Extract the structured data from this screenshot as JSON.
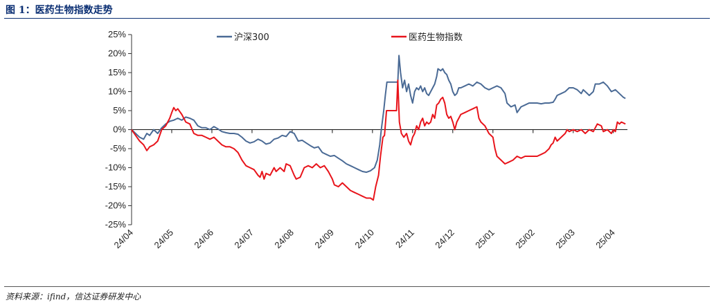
{
  "page": {
    "title": "图 1：医药生物指数走势",
    "source": "资料来源：ifind，信达证券研发中心"
  },
  "chart_data": {
    "type": "line",
    "title": "医药生物指数走势",
    "ylim": [
      -0.25,
      0.25
    ],
    "yticks": [
      0.25,
      0.2,
      0.15,
      0.1,
      0.05,
      0.0,
      -0.05,
      -0.1,
      -0.15,
      -0.2,
      -0.25
    ],
    "ytick_labels": [
      "25%",
      "20%",
      "15%",
      "10%",
      "5%",
      "0%",
      "-5%",
      "-10%",
      "-15%",
      "-20%",
      "-25%"
    ],
    "xlim": [
      0,
      12.35
    ],
    "xticks": [
      0,
      1,
      2,
      3,
      4,
      5,
      6,
      7,
      8,
      9,
      10,
      11,
      12
    ],
    "xtick_labels": [
      "24/04",
      "24/05",
      "24/06",
      "24/07",
      "24/08",
      "24/09",
      "24/10",
      "24/11",
      "24/12",
      "25/01",
      "25/02",
      "25/03",
      "25/04"
    ],
    "legend": [
      "沪深300",
      "医药生物指数"
    ],
    "legend_position": "top",
    "series": [
      {
        "name": "沪深300",
        "color": "#4a6a95",
        "points": [
          [
            0.0,
            0.0
          ],
          [
            0.1,
            -0.01
          ],
          [
            0.2,
            -0.02
          ],
          [
            0.3,
            -0.025
          ],
          [
            0.38,
            -0.01
          ],
          [
            0.45,
            -0.015
          ],
          [
            0.55,
            0.0
          ],
          [
            0.65,
            -0.01
          ],
          [
            0.75,
            0.005
          ],
          [
            0.85,
            0.015
          ],
          [
            0.95,
            0.022
          ],
          [
            1.05,
            0.025
          ],
          [
            1.15,
            0.03
          ],
          [
            1.25,
            0.025
          ],
          [
            1.35,
            0.033
          ],
          [
            1.45,
            0.03
          ],
          [
            1.55,
            0.025
          ],
          [
            1.65,
            0.01
          ],
          [
            1.75,
            0.005
          ],
          [
            1.85,
            0.005
          ],
          [
            1.95,
            0.0
          ],
          [
            2.05,
            0.008
          ],
          [
            2.15,
            0.002
          ],
          [
            2.25,
            -0.005
          ],
          [
            2.35,
            -0.008
          ],
          [
            2.45,
            -0.01
          ],
          [
            2.55,
            -0.01
          ],
          [
            2.65,
            -0.012
          ],
          [
            2.75,
            -0.02
          ],
          [
            2.85,
            -0.03
          ],
          [
            2.95,
            -0.035
          ],
          [
            3.05,
            -0.032
          ],
          [
            3.15,
            -0.025
          ],
          [
            3.25,
            -0.03
          ],
          [
            3.35,
            -0.038
          ],
          [
            3.45,
            -0.035
          ],
          [
            3.55,
            -0.025
          ],
          [
            3.65,
            -0.022
          ],
          [
            3.75,
            -0.015
          ],
          [
            3.85,
            -0.018
          ],
          [
            3.95,
            -0.005
          ],
          [
            4.05,
            -0.01
          ],
          [
            4.15,
            -0.03
          ],
          [
            4.25,
            -0.028
          ],
          [
            4.35,
            -0.035
          ],
          [
            4.45,
            -0.042
          ],
          [
            4.55,
            -0.048
          ],
          [
            4.65,
            -0.045
          ],
          [
            4.75,
            -0.06
          ],
          [
            4.85,
            -0.065
          ],
          [
            4.95,
            -0.07
          ],
          [
            5.05,
            -0.068
          ],
          [
            5.15,
            -0.075
          ],
          [
            5.25,
            -0.082
          ],
          [
            5.35,
            -0.09
          ],
          [
            5.45,
            -0.095
          ],
          [
            5.55,
            -0.1
          ],
          [
            5.65,
            -0.105
          ],
          [
            5.75,
            -0.11
          ],
          [
            5.85,
            -0.112
          ],
          [
            5.95,
            -0.108
          ],
          [
            6.05,
            -0.1
          ],
          [
            6.12,
            -0.08
          ],
          [
            6.18,
            -0.04
          ],
          [
            6.22,
            0.0
          ],
          [
            6.28,
            0.05
          ],
          [
            6.32,
            0.09
          ],
          [
            6.36,
            0.125
          ],
          [
            6.45,
            0.125
          ],
          [
            6.55,
            0.125
          ],
          [
            6.63,
            0.125
          ],
          [
            6.66,
            0.195
          ],
          [
            6.7,
            0.15
          ],
          [
            6.75,
            0.11
          ],
          [
            6.8,
            0.13
          ],
          [
            6.85,
            0.1
          ],
          [
            6.9,
            0.12
          ],
          [
            6.95,
            0.09
          ],
          [
            7.0,
            0.07
          ],
          [
            7.05,
            0.1
          ],
          [
            7.1,
            0.11
          ],
          [
            7.15,
            0.105
          ],
          [
            7.2,
            0.115
          ],
          [
            7.25,
            0.1
          ],
          [
            7.3,
            0.11
          ],
          [
            7.35,
            0.095
          ],
          [
            7.4,
            0.09
          ],
          [
            7.45,
            0.1
          ],
          [
            7.5,
            0.11
          ],
          [
            7.55,
            0.12
          ],
          [
            7.6,
            0.14
          ],
          [
            7.63,
            0.16
          ],
          [
            7.7,
            0.155
          ],
          [
            7.75,
            0.16
          ],
          [
            7.8,
            0.15
          ],
          [
            7.85,
            0.145
          ],
          [
            7.9,
            0.13
          ],
          [
            7.95,
            0.12
          ],
          [
            8.0,
            0.1
          ],
          [
            8.05,
            0.09
          ],
          [
            8.1,
            0.095
          ],
          [
            8.15,
            0.11
          ],
          [
            8.2,
            0.11
          ],
          [
            8.3,
            0.115
          ],
          [
            8.4,
            0.12
          ],
          [
            8.5,
            0.115
          ],
          [
            8.6,
            0.125
          ],
          [
            8.7,
            0.12
          ],
          [
            8.8,
            0.11
          ],
          [
            8.9,
            0.105
          ],
          [
            9.0,
            0.11
          ],
          [
            9.1,
            0.115
          ],
          [
            9.2,
            0.11
          ],
          [
            9.3,
            0.095
          ],
          [
            9.35,
            0.07
          ],
          [
            9.45,
            0.06
          ],
          [
            9.55,
            0.065
          ],
          [
            9.6,
            0.045
          ],
          [
            9.7,
            0.06
          ],
          [
            9.8,
            0.065
          ],
          [
            9.9,
            0.07
          ],
          [
            10.0,
            0.07
          ],
          [
            10.1,
            0.07
          ],
          [
            10.2,
            0.068
          ],
          [
            10.3,
            0.07
          ],
          [
            10.4,
            0.07
          ],
          [
            10.5,
            0.072
          ],
          [
            10.55,
            0.08
          ],
          [
            10.6,
            0.09
          ],
          [
            10.7,
            0.095
          ],
          [
            10.8,
            0.1
          ],
          [
            10.9,
            0.11
          ],
          [
            11.0,
            0.11
          ],
          [
            11.1,
            0.105
          ],
          [
            11.2,
            0.095
          ],
          [
            11.25,
            0.105
          ],
          [
            11.3,
            0.1
          ],
          [
            11.4,
            0.09
          ],
          [
            11.5,
            0.1
          ],
          [
            11.55,
            0.12
          ],
          [
            11.65,
            0.12
          ],
          [
            11.75,
            0.125
          ],
          [
            11.85,
            0.115
          ],
          [
            11.95,
            0.1
          ],
          [
            12.05,
            0.105
          ],
          [
            12.15,
            0.095
          ],
          [
            12.25,
            0.085
          ],
          [
            12.3,
            0.082
          ]
        ]
      },
      {
        "name": "医药生物指数",
        "color": "#e8141b",
        "points": [
          [
            0.0,
            0.0
          ],
          [
            0.1,
            -0.015
          ],
          [
            0.2,
            -0.03
          ],
          [
            0.3,
            -0.04
          ],
          [
            0.38,
            -0.055
          ],
          [
            0.45,
            -0.045
          ],
          [
            0.55,
            -0.04
          ],
          [
            0.65,
            -0.03
          ],
          [
            0.75,
            0.0
          ],
          [
            0.85,
            0.01
          ],
          [
            0.95,
            0.03
          ],
          [
            1.0,
            0.045
          ],
          [
            1.05,
            0.058
          ],
          [
            1.1,
            0.05
          ],
          [
            1.15,
            0.055
          ],
          [
            1.25,
            0.04
          ],
          [
            1.35,
            0.02
          ],
          [
            1.45,
            0.015
          ],
          [
            1.55,
            -0.01
          ],
          [
            1.65,
            -0.015
          ],
          [
            1.75,
            -0.015
          ],
          [
            1.85,
            -0.02
          ],
          [
            1.95,
            -0.025
          ],
          [
            2.05,
            -0.02
          ],
          [
            2.15,
            -0.03
          ],
          [
            2.25,
            -0.04
          ],
          [
            2.35,
            -0.045
          ],
          [
            2.45,
            -0.045
          ],
          [
            2.55,
            -0.05
          ],
          [
            2.65,
            -0.06
          ],
          [
            2.75,
            -0.08
          ],
          [
            2.85,
            -0.095
          ],
          [
            2.95,
            -0.1
          ],
          [
            3.05,
            -0.105
          ],
          [
            3.15,
            -0.12
          ],
          [
            3.2,
            -0.125
          ],
          [
            3.25,
            -0.11
          ],
          [
            3.3,
            -0.13
          ],
          [
            3.35,
            -0.115
          ],
          [
            3.45,
            -0.12
          ],
          [
            3.55,
            -0.1
          ],
          [
            3.6,
            -0.11
          ],
          [
            3.7,
            -0.1
          ],
          [
            3.8,
            -0.11
          ],
          [
            3.85,
            -0.09
          ],
          [
            3.95,
            -0.095
          ],
          [
            4.05,
            -0.12
          ],
          [
            4.1,
            -0.13
          ],
          [
            4.2,
            -0.125
          ],
          [
            4.3,
            -0.1
          ],
          [
            4.4,
            -0.095
          ],
          [
            4.5,
            -0.1
          ],
          [
            4.6,
            -0.09
          ],
          [
            4.7,
            -0.1
          ],
          [
            4.8,
            -0.095
          ],
          [
            4.9,
            -0.11
          ],
          [
            5.0,
            -0.13
          ],
          [
            5.05,
            -0.145
          ],
          [
            5.15,
            -0.15
          ],
          [
            5.25,
            -0.14
          ],
          [
            5.35,
            -0.15
          ],
          [
            5.45,
            -0.16
          ],
          [
            5.55,
            -0.165
          ],
          [
            5.65,
            -0.17
          ],
          [
            5.75,
            -0.175
          ],
          [
            5.85,
            -0.18
          ],
          [
            5.95,
            -0.18
          ],
          [
            6.02,
            -0.185
          ],
          [
            6.08,
            -0.15
          ],
          [
            6.15,
            -0.12
          ],
          [
            6.2,
            -0.07
          ],
          [
            6.26,
            -0.02
          ],
          [
            6.3,
            -0.015
          ],
          [
            6.35,
            0.05
          ],
          [
            6.45,
            0.05
          ],
          [
            6.55,
            0.05
          ],
          [
            6.6,
            0.05
          ],
          [
            6.63,
            0.13
          ],
          [
            6.67,
            0.02
          ],
          [
            6.72,
            -0.01
          ],
          [
            6.78,
            -0.02
          ],
          [
            6.85,
            -0.01
          ],
          [
            6.9,
            -0.03
          ],
          [
            6.95,
            -0.04
          ],
          [
            7.0,
            -0.02
          ],
          [
            7.05,
            -0.01
          ],
          [
            7.1,
            0.01
          ],
          [
            7.15,
            0.0
          ],
          [
            7.2,
            0.02
          ],
          [
            7.25,
            0.03
          ],
          [
            7.3,
            0.01
          ],
          [
            7.35,
            0.02
          ],
          [
            7.4,
            0.015
          ],
          [
            7.45,
            0.02
          ],
          [
            7.5,
            0.04
          ],
          [
            7.55,
            0.03
          ],
          [
            7.6,
            0.065
          ],
          [
            7.65,
            0.07
          ],
          [
            7.7,
            0.08
          ],
          [
            7.75,
            0.085
          ],
          [
            7.8,
            0.07
          ],
          [
            7.85,
            0.04
          ],
          [
            7.9,
            0.03
          ],
          [
            7.95,
            0.035
          ],
          [
            8.0,
            0.02
          ],
          [
            8.05,
            0.0
          ],
          [
            8.1,
            0.02
          ],
          [
            8.15,
            0.03
          ],
          [
            8.2,
            0.04
          ],
          [
            8.3,
            0.045
          ],
          [
            8.4,
            0.05
          ],
          [
            8.5,
            0.055
          ],
          [
            8.6,
            0.06
          ],
          [
            8.65,
            0.03
          ],
          [
            8.7,
            0.02
          ],
          [
            8.8,
            0.01
          ],
          [
            8.9,
            -0.01
          ],
          [
            9.0,
            -0.02
          ],
          [
            9.05,
            -0.05
          ],
          [
            9.1,
            -0.07
          ],
          [
            9.2,
            -0.08
          ],
          [
            9.3,
            -0.09
          ],
          [
            9.4,
            -0.085
          ],
          [
            9.5,
            -0.08
          ],
          [
            9.6,
            -0.07
          ],
          [
            9.7,
            -0.075
          ],
          [
            9.8,
            -0.07
          ],
          [
            9.9,
            -0.07
          ],
          [
            10.0,
            -0.07
          ],
          [
            10.1,
            -0.07
          ],
          [
            10.2,
            -0.065
          ],
          [
            10.3,
            -0.06
          ],
          [
            10.4,
            -0.05
          ],
          [
            10.45,
            -0.04
          ],
          [
            10.5,
            -0.035
          ],
          [
            10.55,
            -0.02
          ],
          [
            10.6,
            -0.03
          ],
          [
            10.7,
            -0.02
          ],
          [
            10.8,
            -0.01
          ],
          [
            10.85,
            0.0
          ],
          [
            10.9,
            -0.005
          ],
          [
            11.0,
            0.0
          ],
          [
            11.1,
            -0.005
          ],
          [
            11.2,
            0.0
          ],
          [
            11.3,
            -0.01
          ],
          [
            11.4,
            0.0
          ],
          [
            11.5,
            -0.005
          ],
          [
            11.55,
            0.005
          ],
          [
            11.6,
            0.015
          ],
          [
            11.7,
            0.01
          ],
          [
            11.75,
            -0.005
          ],
          [
            11.85,
            0.0
          ],
          [
            11.95,
            -0.01
          ],
          [
            12.0,
            0.0
          ],
          [
            12.05,
            -0.005
          ],
          [
            12.1,
            0.02
          ],
          [
            12.15,
            0.015
          ],
          [
            12.2,
            0.02
          ],
          [
            12.3,
            0.015
          ]
        ]
      }
    ]
  }
}
